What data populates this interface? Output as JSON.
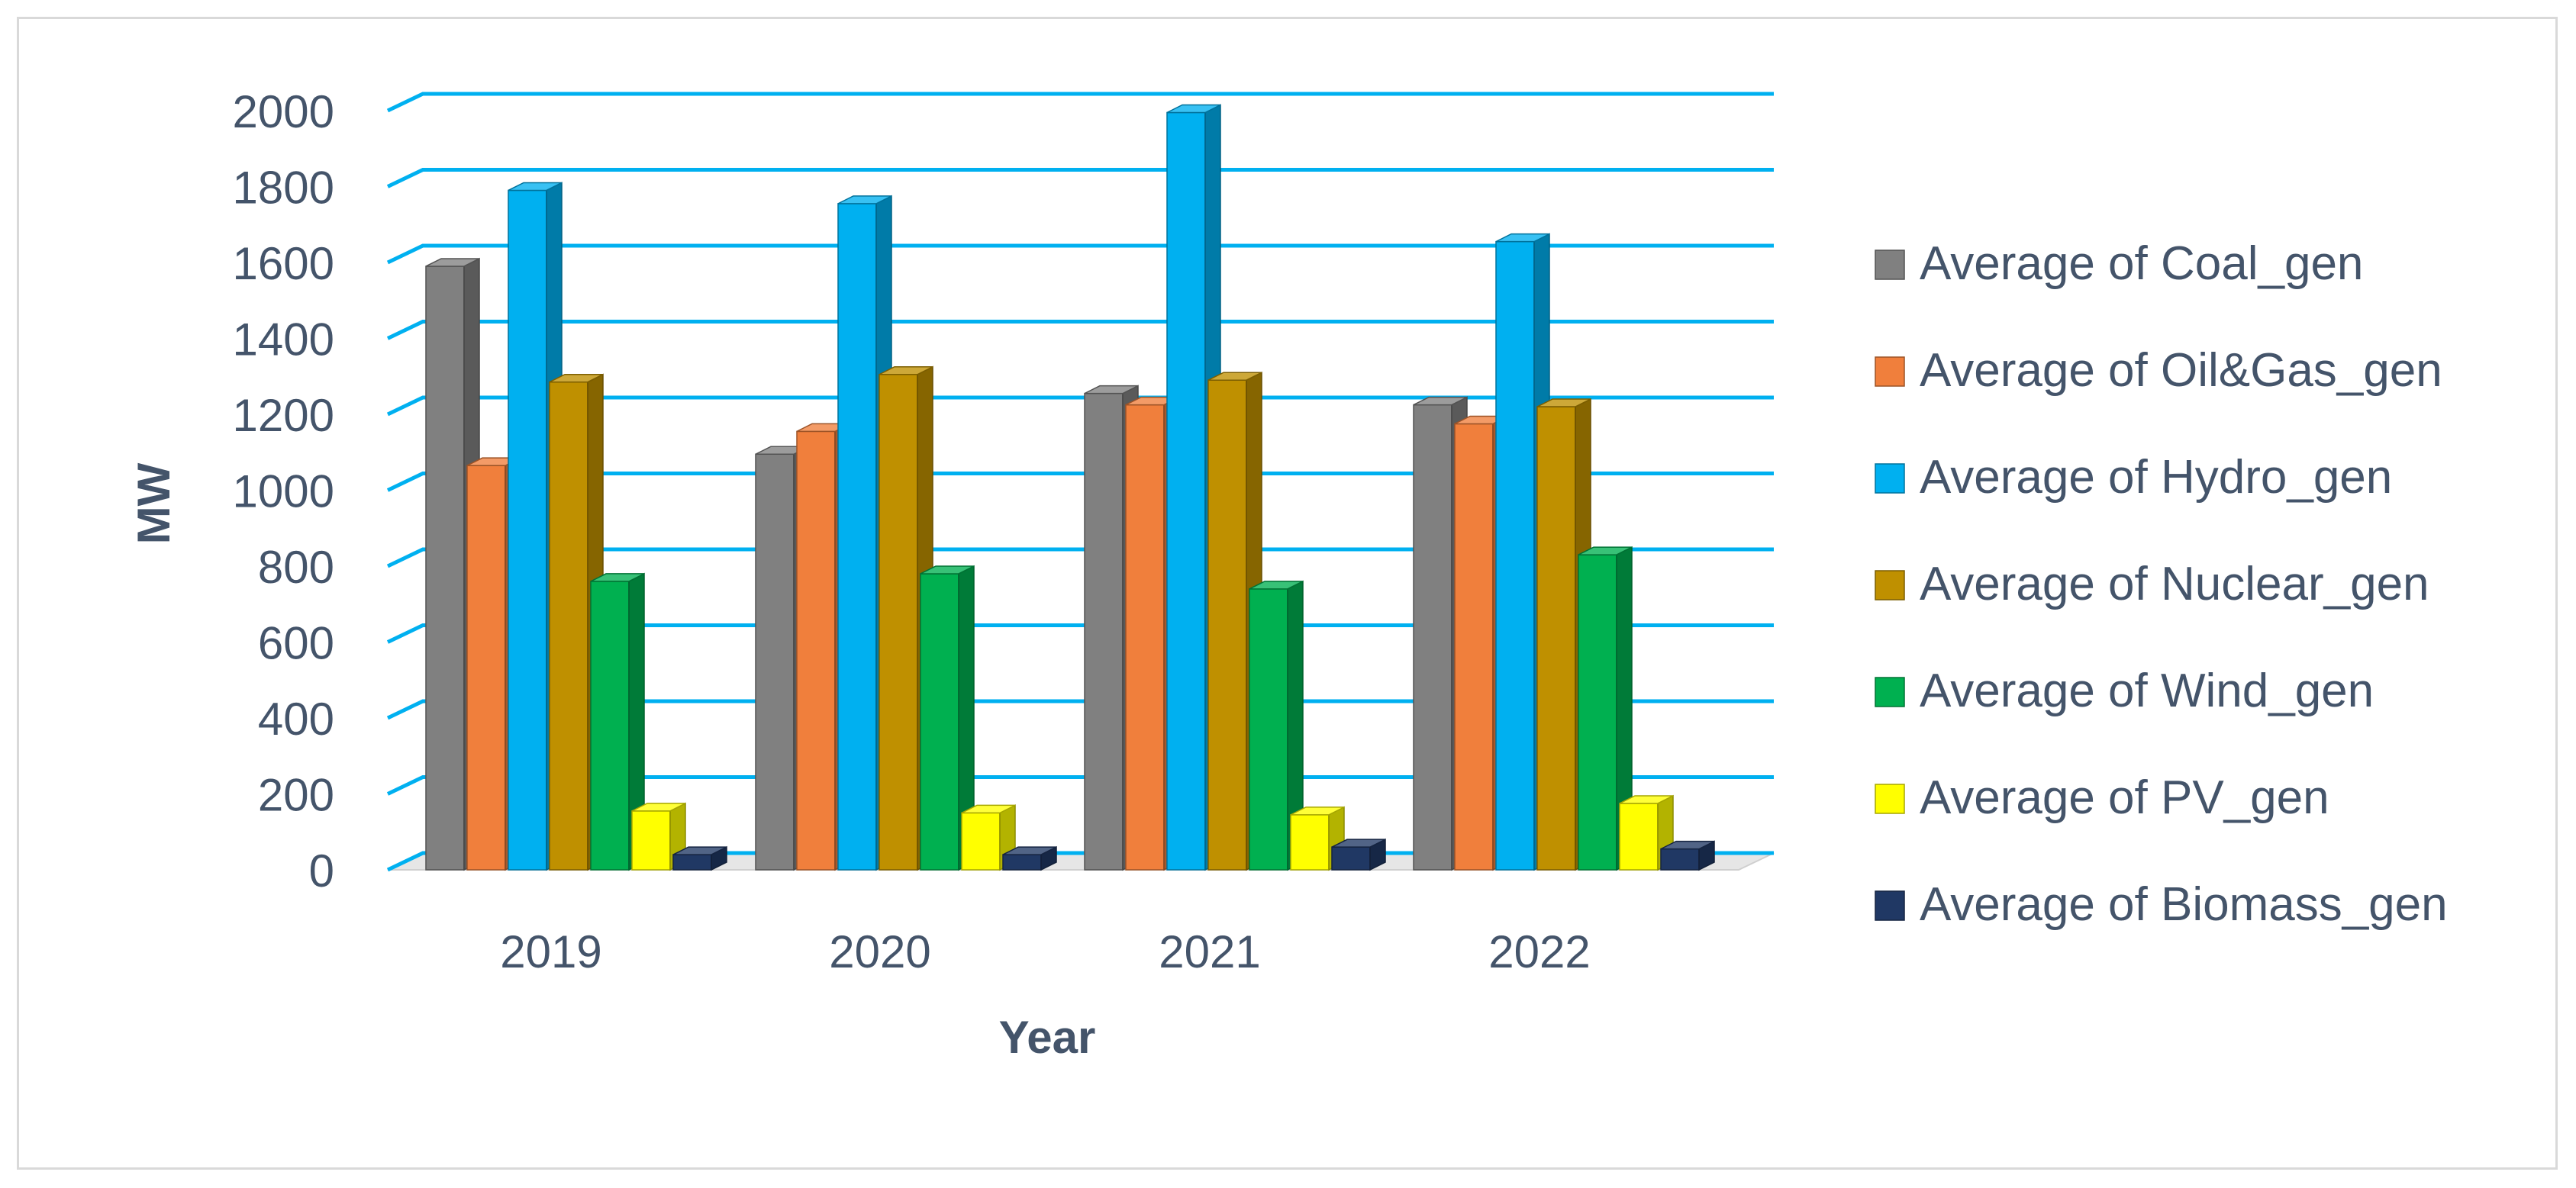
{
  "chart_data": {
    "type": "bar",
    "style": "3d-clustered-column",
    "categories": [
      "2019",
      "2020",
      "2021",
      "2022"
    ],
    "series": [
      {
        "name": "Average of Coal_gen",
        "color": "#808080",
        "values": [
          1590,
          1095,
          1255,
          1225
        ]
      },
      {
        "name": "Average of Oil&Gas_gen",
        "color": "#f07f3c",
        "values": [
          1065,
          1155,
          1225,
          1175
        ]
      },
      {
        "name": "Average of Hydro_gen",
        "color": "#00b0f0",
        "values": [
          1790,
          1755,
          1995,
          1655
        ]
      },
      {
        "name": "Average of Nuclear_gen",
        "color": "#bf9000",
        "values": [
          1285,
          1305,
          1290,
          1220
        ]
      },
      {
        "name": "Average of Wind_gen",
        "color": "#00b050",
        "values": [
          760,
          780,
          740,
          830
        ]
      },
      {
        "name": "Average of PV_gen",
        "color": "#ffff00",
        "values": [
          155,
          150,
          145,
          175
        ]
      },
      {
        "name": "Average of Biomass_gen",
        "color": "#203864",
        "values": [
          40,
          40,
          60,
          55
        ]
      }
    ],
    "title": "",
    "xlabel": "Year",
    "ylabel": "MW",
    "ylim": [
      0,
      2000
    ],
    "yticks": [
      "0",
      "200",
      "400",
      "600",
      "800",
      "1000",
      "1200",
      "1400",
      "1600",
      "1800",
      "2000"
    ],
    "grid": true,
    "gridline_color": "#00b0f0",
    "legend_position": "right"
  }
}
